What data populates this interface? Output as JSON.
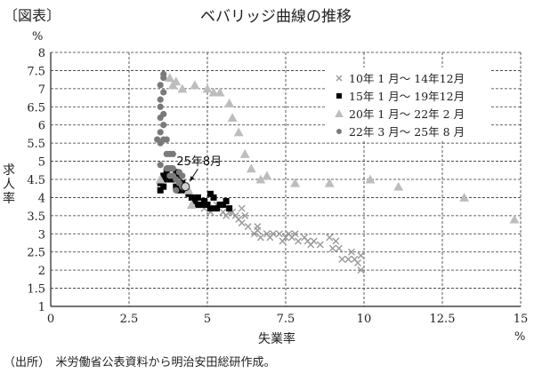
{
  "header": {
    "figure_label": "〔図表〕",
    "title": "ベバリッジ曲線の推移"
  },
  "footer": {
    "source": "（出所）　米労働省公表資料から明治安田総研作成。"
  },
  "chart_data": {
    "type": "scatter",
    "title": "ベバリッジ曲線の推移",
    "xlabel": "失業率",
    "ylabel": "求人率",
    "x_unit": "%",
    "y_unit": "%",
    "xlim": [
      0,
      15
    ],
    "ylim": [
      1,
      8
    ],
    "x_ticks": [
      0,
      2.5,
      5,
      7.5,
      10,
      12.5,
      15
    ],
    "x_tick_labels": [
      "0",
      "2.5",
      "5",
      "7.5",
      "10",
      "12.5",
      "15"
    ],
    "y_ticks": [
      1,
      1.5,
      2,
      2.5,
      3,
      3.5,
      4,
      4.5,
      5,
      5.5,
      6,
      6.5,
      7,
      7.5,
      8
    ],
    "y_tick_labels": [
      "1",
      "1.5",
      "2",
      "2.5",
      "3",
      "3.5",
      "4",
      "4.5",
      "5",
      "5.5",
      "6",
      "6.5",
      "7",
      "7.5",
      "8"
    ],
    "grid": true,
    "grid_style": "dashed",
    "legend_position": "upper right",
    "annotation": {
      "text": "25年8月",
      "x": 4.3,
      "y": 4.3
    },
    "series": [
      {
        "name": "10年 1 月～ 14年12月",
        "marker": "x",
        "color": "#9a9a9a",
        "points": [
          [
            9.9,
            2.0
          ],
          [
            9.8,
            2.2
          ],
          [
            9.7,
            2.3
          ],
          [
            9.9,
            2.4
          ],
          [
            9.5,
            2.3
          ],
          [
            9.3,
            2.3
          ],
          [
            9.6,
            2.5
          ],
          [
            9.2,
            2.6
          ],
          [
            9.0,
            2.6
          ],
          [
            9.1,
            2.8
          ],
          [
            8.9,
            2.9
          ],
          [
            8.6,
            2.7
          ],
          [
            8.3,
            2.7
          ],
          [
            8.4,
            2.8
          ],
          [
            8.2,
            2.8
          ],
          [
            8.1,
            2.9
          ],
          [
            7.9,
            2.8
          ],
          [
            7.8,
            3.0
          ],
          [
            7.7,
            2.9
          ],
          [
            7.5,
            2.9
          ],
          [
            7.6,
            3.0
          ],
          [
            7.3,
            3.0
          ],
          [
            7.4,
            2.8
          ],
          [
            7.0,
            2.9
          ],
          [
            6.9,
            3.0
          ],
          [
            6.7,
            2.9
          ],
          [
            6.6,
            3.1
          ],
          [
            6.5,
            3.0
          ],
          [
            6.6,
            3.2
          ],
          [
            6.1,
            3.3
          ],
          [
            6.2,
            3.5
          ],
          [
            6.0,
            3.4
          ],
          [
            5.8,
            3.6
          ],
          [
            5.9,
            3.5
          ],
          [
            5.7,
            3.6
          ],
          [
            5.6,
            3.5
          ],
          [
            5.5,
            3.6
          ],
          [
            6.1,
            3.7
          ],
          [
            5.4,
            3.8
          ],
          [
            5.3,
            3.8
          ],
          [
            5.0,
            3.8
          ],
          [
            4.9,
            3.7
          ],
          [
            5.1,
            3.6
          ],
          [
            6.3,
            3.2
          ],
          [
            7.1,
            3.0
          ]
        ]
      },
      {
        "name": "15年 1 月～ 19年12月",
        "marker": "square",
        "color": "#000000",
        "points": [
          [
            5.7,
            3.7
          ],
          [
            5.5,
            3.8
          ],
          [
            5.6,
            3.9
          ],
          [
            5.4,
            3.8
          ],
          [
            5.3,
            3.7
          ],
          [
            5.0,
            3.8
          ],
          [
            5.1,
            4.1
          ],
          [
            4.9,
            3.9
          ],
          [
            4.8,
            3.8
          ],
          [
            4.7,
            4.0
          ],
          [
            4.6,
            3.9
          ],
          [
            4.5,
            4.0
          ],
          [
            4.4,
            4.1
          ],
          [
            4.3,
            4.2
          ],
          [
            4.1,
            4.2
          ],
          [
            4.2,
            4.4
          ],
          [
            4.0,
            4.3
          ],
          [
            3.9,
            4.5
          ],
          [
            4.1,
            4.6
          ],
          [
            3.8,
            4.5
          ],
          [
            3.7,
            4.6
          ],
          [
            3.6,
            4.5
          ],
          [
            3.7,
            4.7
          ],
          [
            3.8,
            4.8
          ],
          [
            3.6,
            4.3
          ],
          [
            3.5,
            4.4
          ],
          [
            3.5,
            4.2
          ],
          [
            3.6,
            4.6
          ],
          [
            4.0,
            4.7
          ],
          [
            5.2,
            4.0
          ],
          [
            4.7,
            3.8
          ],
          [
            5.1,
            3.7
          ]
        ]
      },
      {
        "name": "20年 1 月～ 22年 2 月",
        "marker": "triangle",
        "color": "#bdbdbd",
        "points": [
          [
            14.8,
            3.4
          ],
          [
            13.2,
            4.0
          ],
          [
            11.1,
            4.3
          ],
          [
            10.2,
            4.5
          ],
          [
            8.9,
            4.4
          ],
          [
            7.8,
            4.4
          ],
          [
            6.9,
            4.6
          ],
          [
            6.7,
            4.5
          ],
          [
            6.4,
            4.8
          ],
          [
            6.2,
            5.2
          ],
          [
            6.0,
            5.8
          ],
          [
            5.8,
            6.2
          ],
          [
            5.7,
            6.6
          ],
          [
            5.0,
            7.0
          ],
          [
            4.6,
            7.1
          ],
          [
            4.2,
            7.0
          ],
          [
            3.9,
            7.1
          ],
          [
            5.4,
            6.9
          ],
          [
            4.0,
            7.2
          ],
          [
            3.8,
            7.3
          ],
          [
            5.2,
            6.9
          ],
          [
            3.5,
            4.5
          ],
          [
            4.5,
            3.8
          ],
          [
            4.4,
            4.2
          ]
        ]
      },
      {
        "name": "22年 3 月～ 25年 8 月",
        "marker": "circle",
        "color": "#7a7a7a",
        "points": [
          [
            3.6,
            7.4
          ],
          [
            3.6,
            7.3
          ],
          [
            3.5,
            7.1
          ],
          [
            3.6,
            6.9
          ],
          [
            3.5,
            6.7
          ],
          [
            3.5,
            6.5
          ],
          [
            3.6,
            6.3
          ],
          [
            3.5,
            6.2
          ],
          [
            3.6,
            6.0
          ],
          [
            3.5,
            5.8
          ],
          [
            3.4,
            5.6
          ],
          [
            3.5,
            5.5
          ],
          [
            3.6,
            5.6
          ],
          [
            3.7,
            5.6
          ],
          [
            3.7,
            5.2
          ],
          [
            3.8,
            5.2
          ],
          [
            3.9,
            5.2
          ],
          [
            3.5,
            4.9
          ],
          [
            3.7,
            4.8
          ],
          [
            3.8,
            4.8
          ],
          [
            3.9,
            4.8
          ],
          [
            3.8,
            4.6
          ],
          [
            3.9,
            4.6
          ],
          [
            4.0,
            4.5
          ],
          [
            4.1,
            4.4
          ],
          [
            4.2,
            4.3
          ],
          [
            4.0,
            4.2
          ],
          [
            4.1,
            4.7
          ],
          [
            4.2,
            4.6
          ],
          [
            4.3,
            4.3
          ]
        ]
      }
    ]
  }
}
